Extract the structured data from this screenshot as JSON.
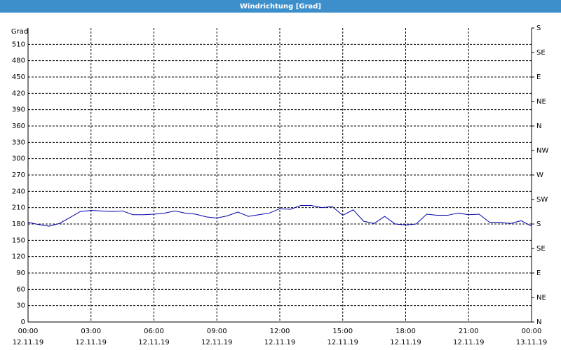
{
  "chart_data": {
    "type": "line",
    "title": "Windrichtung [Grad]",
    "y_label": "Grad",
    "x": [
      0,
      0.5,
      1,
      1.5,
      2,
      2.5,
      3,
      3.5,
      4,
      4.5,
      5,
      5.5,
      6,
      6.5,
      7,
      7.5,
      8,
      8.5,
      9,
      9.5,
      10,
      10.5,
      11,
      11.5,
      12,
      12.5,
      13,
      13.5,
      14,
      14.5,
      15,
      15.5,
      16,
      16.5,
      17,
      17.5,
      18,
      18.5,
      19,
      19.5,
      20,
      20.5,
      21,
      21.5,
      22,
      22.5,
      23,
      23.5,
      24
    ],
    "series": [
      {
        "color": "#0000a8",
        "values": [
          183,
          179,
          176,
          181,
          192,
          203,
          205,
          204,
          203,
          204,
          197,
          197,
          198,
          200,
          204,
          200,
          198,
          193,
          191,
          195,
          202,
          194,
          197,
          200,
          208,
          207,
          214,
          214,
          210,
          212,
          196,
          206,
          185,
          181,
          194,
          180,
          178,
          180,
          198,
          196,
          196,
          200,
          197,
          198,
          183,
          183,
          181,
          186,
          176
        ]
      }
    ],
    "xlim": [
      0,
      24
    ],
    "xticks": [
      {
        "value": 0,
        "label": "00:00",
        "date": "12.11.19"
      },
      {
        "value": 3,
        "label": "03:00",
        "date": "12.11.19"
      },
      {
        "value": 6,
        "label": "06:00",
        "date": "12.11.19"
      },
      {
        "value": 9,
        "label": "09:00",
        "date": "12.11.19"
      },
      {
        "value": 12,
        "label": "12:00",
        "date": "12.11.19"
      },
      {
        "value": 15,
        "label": "15:00",
        "date": "12.11.19"
      },
      {
        "value": 18,
        "label": "18:00",
        "date": "12.11.19"
      },
      {
        "value": 21,
        "label": "21:00",
        "date": "12.11.19"
      },
      {
        "value": 24,
        "label": "00:00",
        "date": "13.11.19"
      }
    ],
    "ylim": [
      0,
      540
    ],
    "yticks": [
      0,
      30,
      60,
      90,
      120,
      150,
      180,
      210,
      240,
      270,
      300,
      330,
      360,
      390,
      420,
      450,
      480,
      510
    ],
    "y2lim": [
      0,
      540
    ],
    "y2ticks": [
      {
        "value": 0,
        "label": "N"
      },
      {
        "value": 45,
        "label": "NE"
      },
      {
        "value": 90,
        "label": "E"
      },
      {
        "value": 135,
        "label": "SE"
      },
      {
        "value": 180,
        "label": "S"
      },
      {
        "value": 225,
        "label": "SW"
      },
      {
        "value": 270,
        "label": "W"
      },
      {
        "value": 315,
        "label": "NW"
      },
      {
        "value": 360,
        "label": "N"
      },
      {
        "value": 405,
        "label": "NE"
      },
      {
        "value": 450,
        "label": "E"
      },
      {
        "value": 495,
        "label": "SE"
      },
      {
        "value": 540,
        "label": "S"
      }
    ],
    "grid": true
  }
}
